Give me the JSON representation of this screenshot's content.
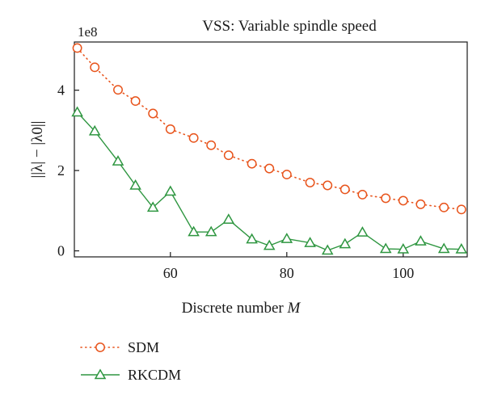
{
  "chart_data": {
    "type": "line",
    "title": "VSS: Variable spindle speed",
    "xlabel_prefix": "Discrete number ",
    "xlabel_var": "M",
    "ylabel": "||λ| − |λ0||",
    "y_offset_label": "1e8",
    "xlim": [
      43.5,
      111
    ],
    "ylim": [
      -0.15,
      5.2
    ],
    "x_ticks": [
      60,
      80,
      100
    ],
    "x_tick_labels": [
      "60",
      "80",
      "100"
    ],
    "y_ticks": [
      0,
      2,
      4
    ],
    "y_tick_labels": [
      "0",
      "2",
      "4"
    ],
    "grid": false,
    "legend_position": "below",
    "x": [
      44,
      47,
      51,
      54,
      57,
      60,
      64,
      67,
      70,
      74,
      77,
      80,
      84,
      87,
      90,
      93,
      97,
      100,
      103,
      107,
      110
    ],
    "series": [
      {
        "name": "SDM",
        "color": "#e8541c",
        "marker": "circle",
        "line": "dotted",
        "values": [
          5.05,
          4.57,
          4.01,
          3.73,
          3.42,
          3.03,
          2.81,
          2.63,
          2.38,
          2.17,
          2.05,
          1.9,
          1.7,
          1.63,
          1.53,
          1.4,
          1.31,
          1.25,
          1.16,
          1.08,
          1.03
        ]
      },
      {
        "name": "RKCDM",
        "color": "#2e9640",
        "marker": "triangle",
        "line": "solid",
        "values": [
          3.45,
          2.98,
          2.23,
          1.63,
          1.08,
          1.48,
          0.47,
          0.47,
          0.78,
          0.29,
          0.13,
          0.3,
          0.2,
          0.01,
          0.17,
          0.46,
          0.05,
          0.04,
          0.24,
          0.05,
          0.04
        ]
      }
    ]
  }
}
